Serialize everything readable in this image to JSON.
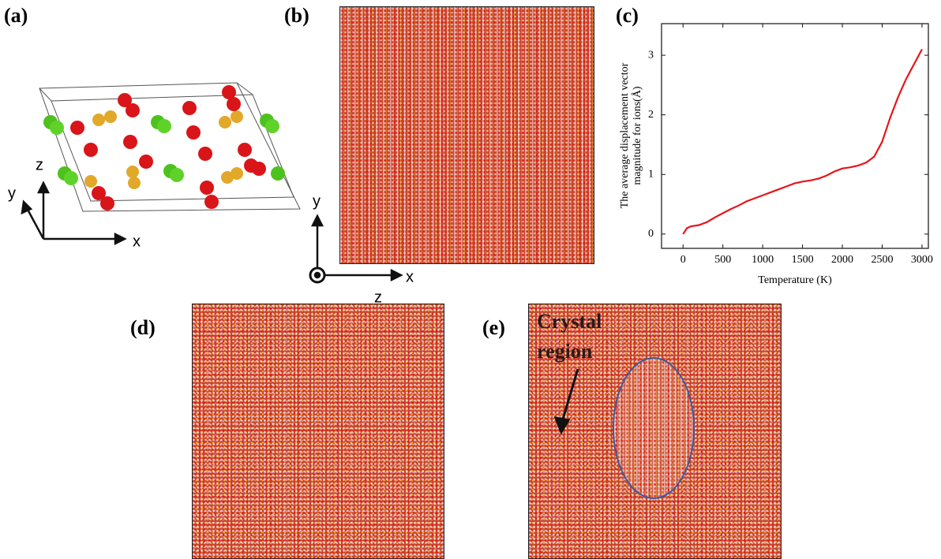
{
  "panels": {
    "a": {
      "label": "(a)",
      "axes": [
        "z",
        "y",
        "x"
      ]
    },
    "b": {
      "label": "(b)",
      "axes": [
        "y",
        "x",
        "z"
      ]
    },
    "c": {
      "label": "(c)"
    },
    "d": {
      "label": "(d)"
    },
    "e": {
      "label": "(e)",
      "annotation": [
        "Crystal",
        "region"
      ]
    }
  },
  "chart_data": {
    "type": "line",
    "x_label": "Temperature (K)",
    "y_label": [
      "The average displacement  vector",
      "magnitude for ions(Å)"
    ],
    "x": [
      0,
      50,
      100,
      200,
      300,
      400,
      500,
      600,
      700,
      800,
      900,
      1000,
      1100,
      1200,
      1300,
      1400,
      1500,
      1600,
      1700,
      1800,
      1900,
      2000,
      2100,
      2200,
      2300,
      2400,
      2500,
      2600,
      2700,
      2800,
      2900,
      3000
    ],
    "series": [
      {
        "color": "#e8141a",
        "values": [
          0,
          0.1,
          0.13,
          0.15,
          0.2,
          0.28,
          0.35,
          0.42,
          0.48,
          0.55,
          0.6,
          0.65,
          0.7,
          0.75,
          0.8,
          0.85,
          0.88,
          0.9,
          0.93,
          0.98,
          1.05,
          1.1,
          1.12,
          1.15,
          1.2,
          1.3,
          1.55,
          1.95,
          2.3,
          2.6,
          2.85,
          3.1
        ]
      }
    ],
    "xlim": [
      -270,
      3080
    ],
    "ylim": [
      -0.24,
      3.53
    ],
    "xticks": [
      0,
      500,
      1000,
      1500,
      2000,
      2500,
      3000
    ],
    "yticks": [
      0,
      1,
      2,
      3
    ]
  }
}
